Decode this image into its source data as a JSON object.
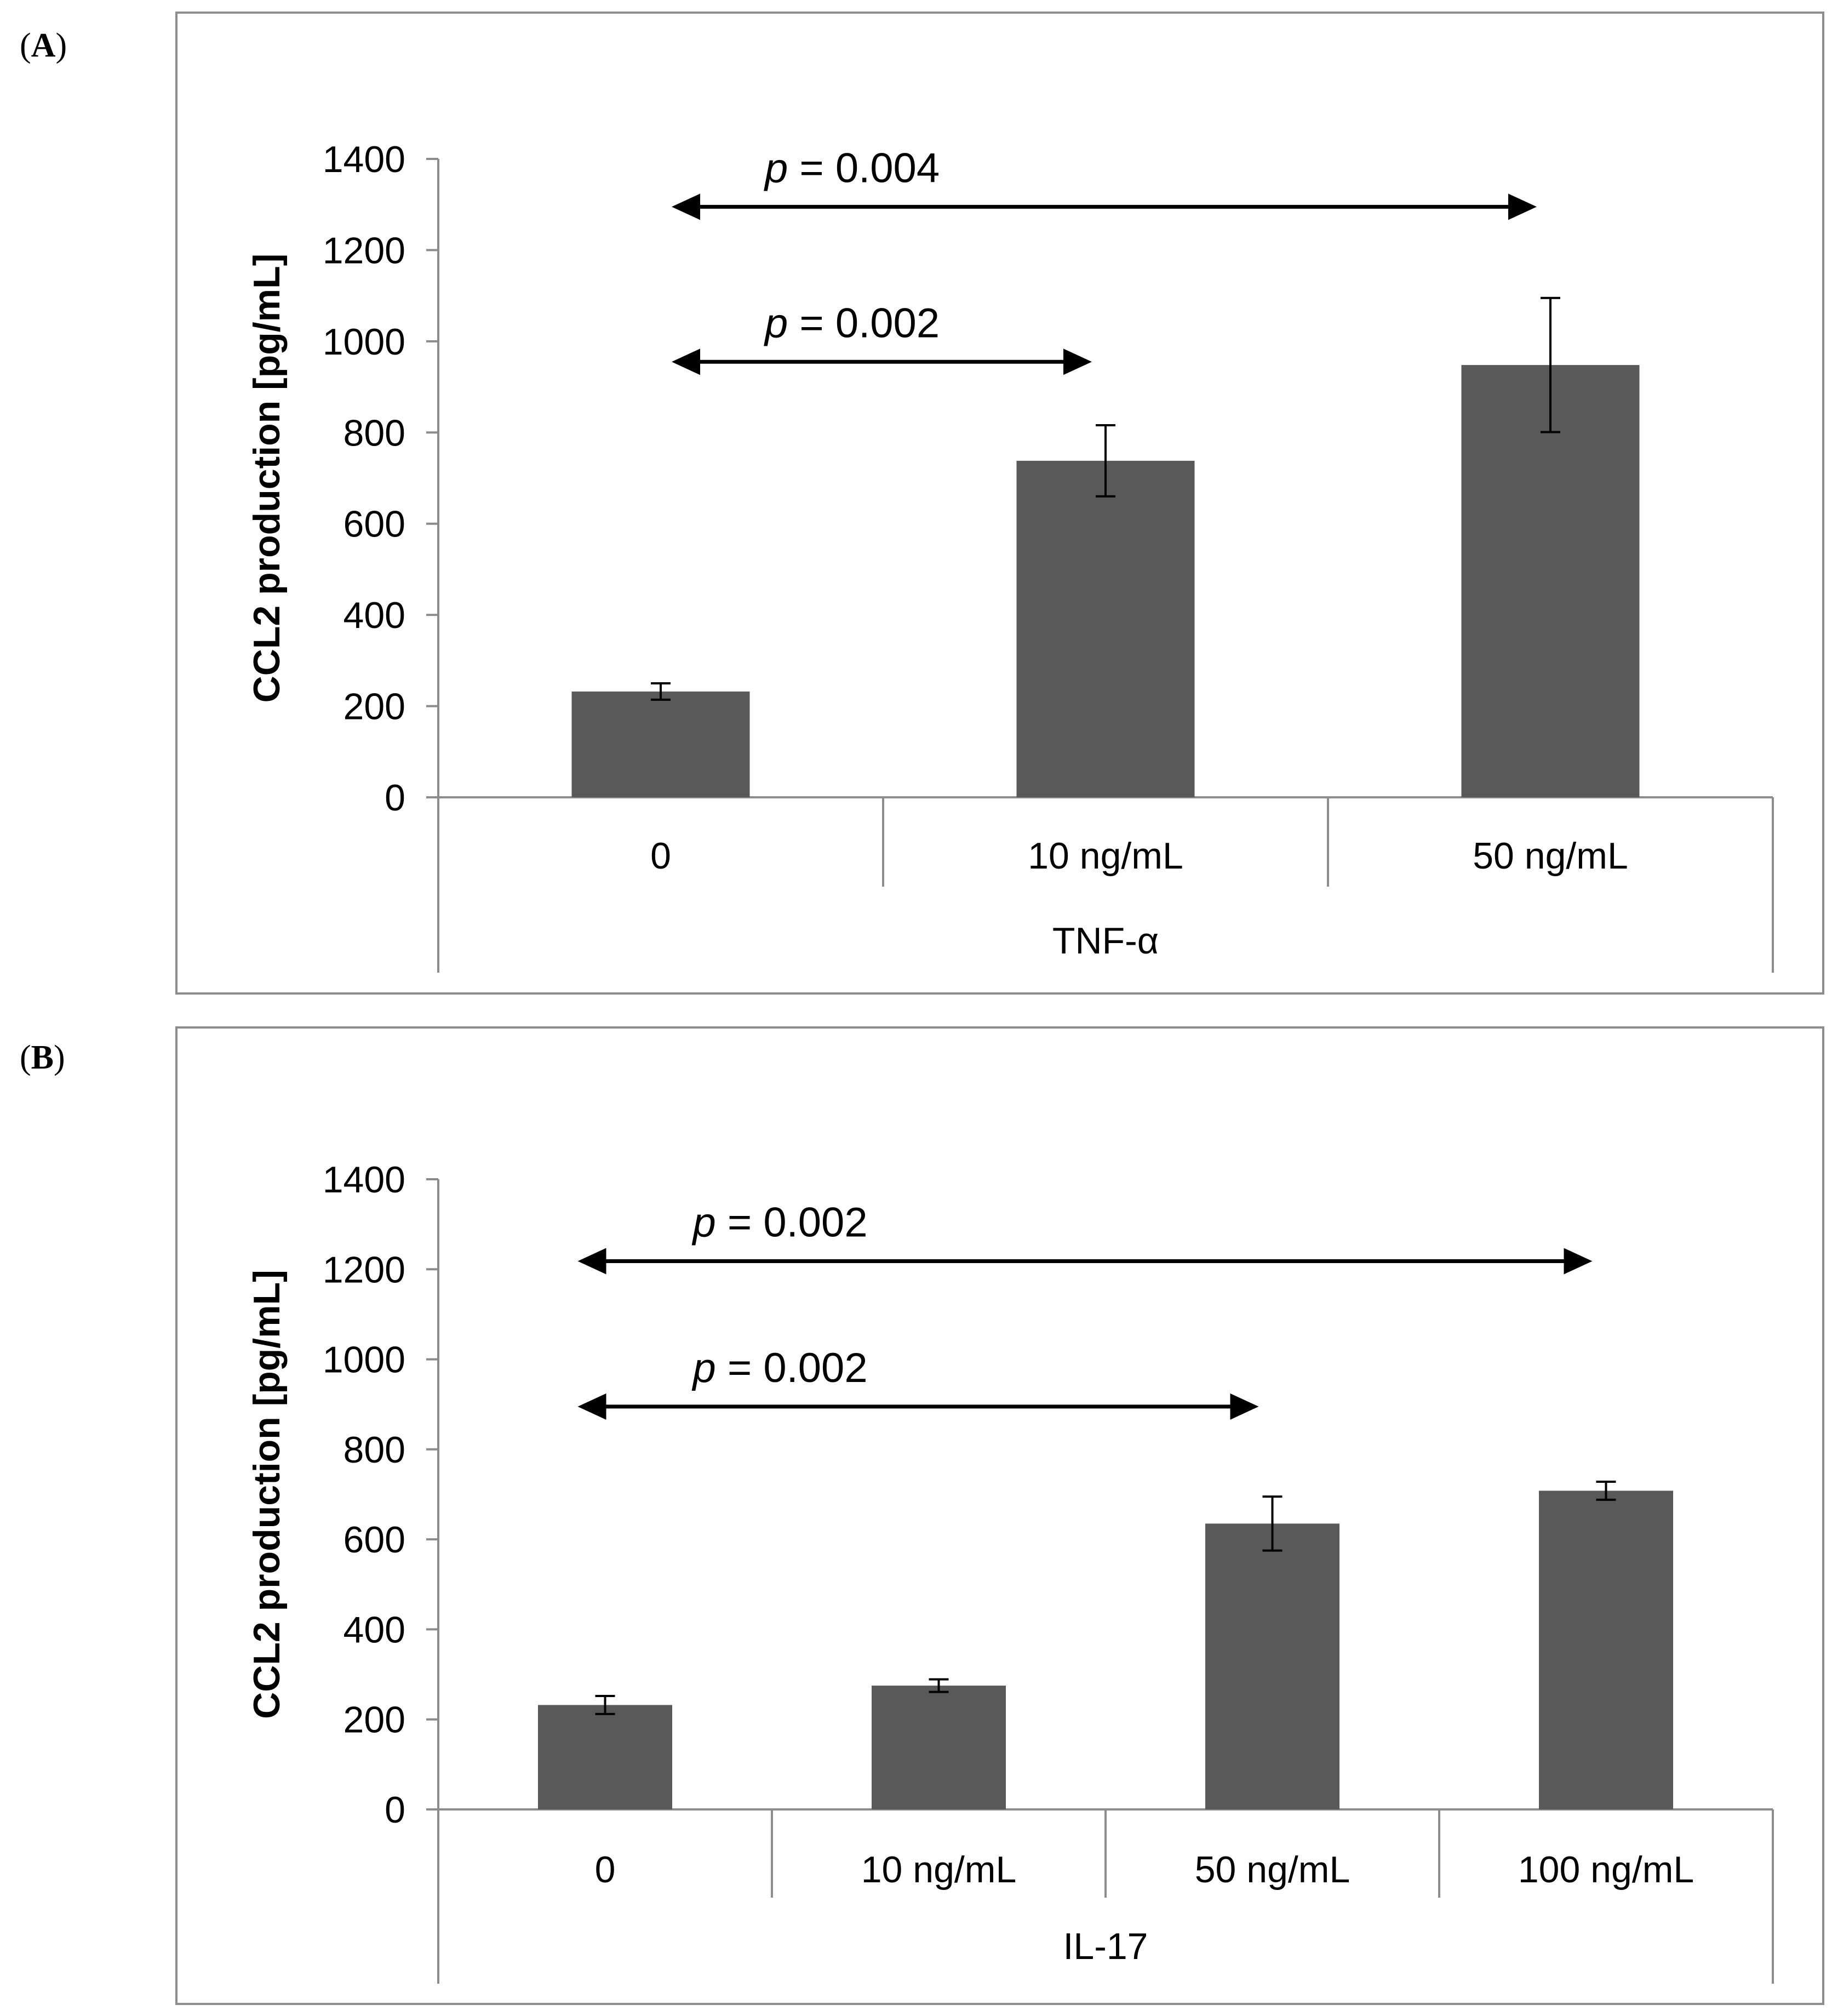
{
  "chart_data": [
    {
      "panel_label": "A",
      "type": "bar",
      "ylabel": "CCL2 production [pg/mL]",
      "group_label": "TNF-α",
      "ylim": [
        0,
        1400
      ],
      "yticks": [
        0,
        200,
        400,
        600,
        800,
        1000,
        1200,
        1400
      ],
      "categories": [
        "0",
        "10 ng/mL",
        "50 ng/mL"
      ],
      "values": [
        232,
        738,
        948
      ],
      "errors": [
        18,
        78,
        147
      ],
      "bar_color": "#595959",
      "annotations": [
        {
          "p_italic": "p",
          "text": " = 0.004",
          "from": 0,
          "to": 2,
          "level": 1295
        },
        {
          "p_italic": "p",
          "text": " = 0.002",
          "from": 0,
          "to": 1,
          "level": 955
        }
      ]
    },
    {
      "panel_label": "B",
      "type": "bar",
      "ylabel": "CCL2 production [pg/mL]",
      "group_label": "IL-17",
      "ylim": [
        0,
        1400
      ],
      "yticks": [
        0,
        200,
        400,
        600,
        800,
        1000,
        1200,
        1400
      ],
      "categories": [
        "0",
        "10 ng/mL",
        "50 ng/mL",
        "100 ng/mL"
      ],
      "values": [
        232,
        275,
        635,
        708
      ],
      "errors": [
        20,
        14,
        60,
        20
      ],
      "bar_color": "#595959",
      "annotations": [
        {
          "p_italic": "p",
          "text": " = 0.002",
          "from": 0,
          "to": 3,
          "level": 1218
        },
        {
          "p_italic": "p",
          "text": " = 0.002",
          "from": 0,
          "to": 2,
          "level": 895
        }
      ]
    }
  ]
}
